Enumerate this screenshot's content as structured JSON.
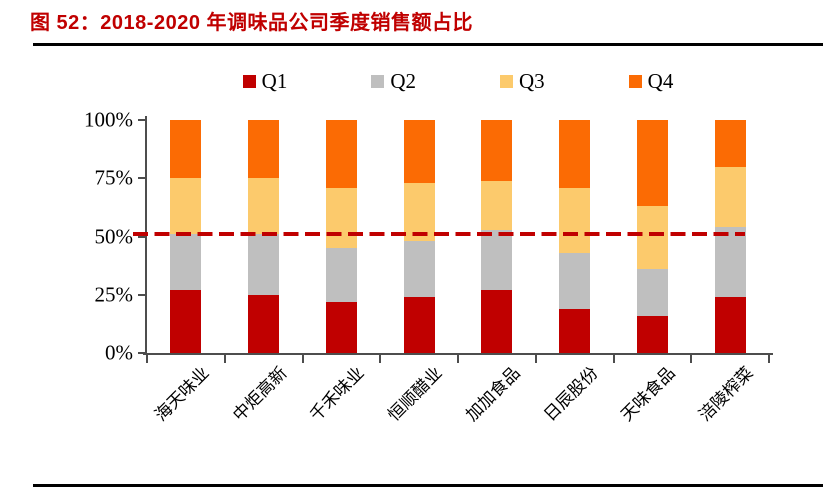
{
  "title": "图 52：2018-2020 年调味品公司季度销售额占比",
  "colors": {
    "title": "#C00000",
    "axis": "#4D4D4D",
    "rule": "#000000",
    "q1": "#C00000",
    "q2": "#BFBFBF",
    "q3": "#FCCA6C",
    "q4": "#FB6B04",
    "reference_line": "#C00000"
  },
  "chart_data": {
    "type": "bar",
    "stacked": true,
    "title": "图 52：2018-2020 年调味品公司季度销售额占比",
    "categories": [
      "海天味业",
      "中炬高新",
      "千禾味业",
      "恒顺醋业",
      "加加食品",
      "日辰股份",
      "天味食品",
      "涪陵榨菜"
    ],
    "series": [
      {
        "name": "Q1",
        "color": "#C00000",
        "values": [
          27,
          25,
          22,
          24,
          27,
          19,
          16,
          24
        ]
      },
      {
        "name": "Q2",
        "color": "#BFBFBF",
        "values": [
          24,
          26,
          23,
          24,
          26,
          24,
          20,
          30
        ]
      },
      {
        "name": "Q3",
        "color": "#FCCA6C",
        "values": [
          24,
          24,
          26,
          25,
          21,
          28,
          27,
          26
        ]
      },
      {
        "name": "Q4",
        "color": "#FB6B04",
        "values": [
          25,
          25,
          29,
          27,
          26,
          29,
          37,
          20
        ]
      }
    ],
    "ylim": [
      0,
      100
    ],
    "ytick_labels": [
      "0%",
      "25%",
      "50%",
      "75%",
      "100%"
    ],
    "ytick_values": [
      0,
      25,
      50,
      75,
      100
    ],
    "grid": false,
    "legend_position": "top",
    "reference_line": {
      "value": 51,
      "style": "dashed",
      "color": "#C00000"
    }
  }
}
